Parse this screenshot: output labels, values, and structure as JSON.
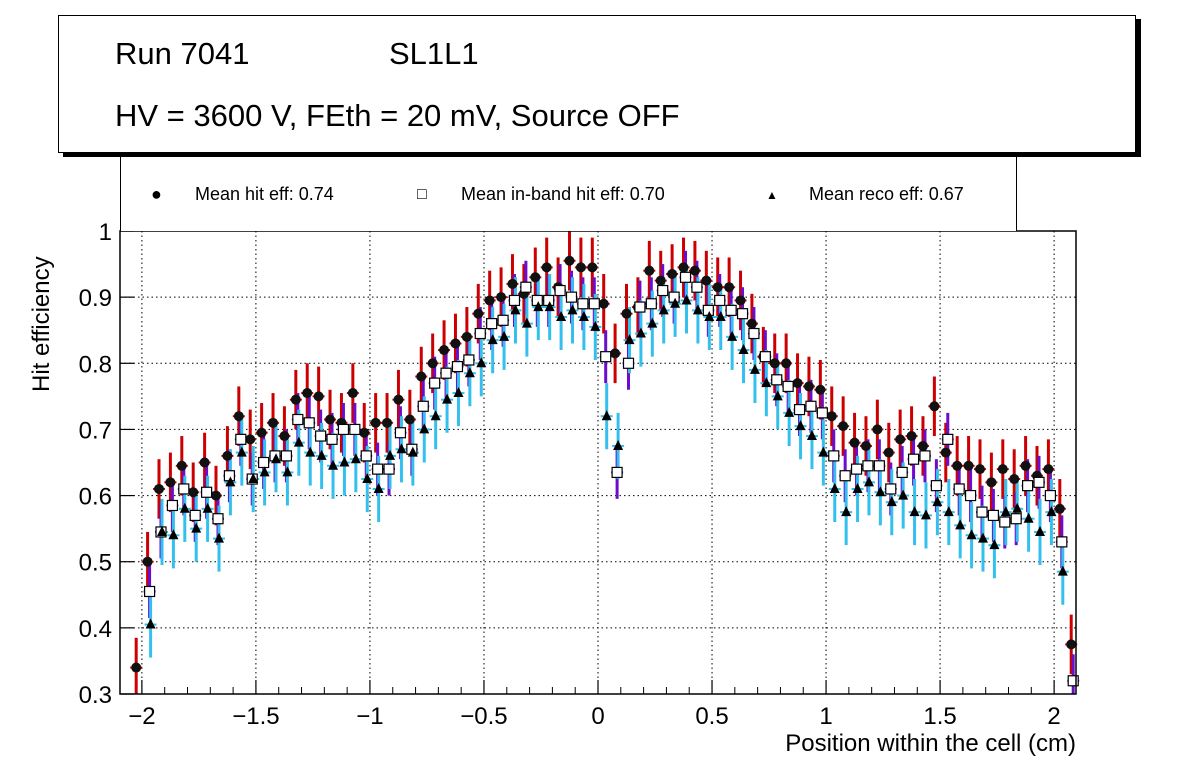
{
  "title_box": {
    "line1_run": "Run 7041",
    "line1_layer": "SL1L1",
    "line2": "HV = 3600 V, FEth = 20 mV, Source OFF"
  },
  "chart_data": {
    "type": "scatter",
    "title": "Run 7041 SL1L1 — HV = 3600 V, FEth = 20 mV, Source OFF",
    "xlabel": "Position within the cell (cm)",
    "ylabel": "Hit efficiency",
    "xlim": [
      -2.1,
      2.1
    ],
    "ylim": [
      0.3,
      1.0
    ],
    "grid": true,
    "legend_position": "top",
    "xticks": [
      -2,
      -1.5,
      -1,
      -0.5,
      0,
      0.5,
      1,
      1.5,
      2
    ],
    "xtick_labels": [
      "−2",
      "−1.5",
      "−1",
      "−0.5",
      "0",
      "0.5",
      "1",
      "1.5",
      "2"
    ],
    "yticks": [
      0.3,
      0.4,
      0.5,
      0.6,
      0.7,
      0.8,
      0.9,
      1
    ],
    "ytick_labels": [
      "0.3",
      "0.4",
      "0.5",
      "0.6",
      "0.7",
      "0.8",
      "0.9",
      "1"
    ],
    "legend": [
      {
        "name": "Mean hit  eff: 0.74",
        "marker": "circle"
      },
      {
        "name": "Mean in-band hit eff: 0.70",
        "marker": "open-square"
      },
      {
        "name": "Mean reco eff: 0.67",
        "marker": "triangle"
      }
    ],
    "x_start": -2.025,
    "x_step": 0.05,
    "series": [
      {
        "name": "Mean hit eff",
        "color": "#cc0000",
        "marker": "circle",
        "values": [
          0.34,
          0.5,
          0.61,
          0.62,
          0.645,
          0.605,
          0.65,
          0.6,
          0.66,
          0.72,
          0.685,
          0.695,
          0.71,
          0.69,
          0.745,
          0.755,
          0.75,
          0.715,
          0.71,
          0.755,
          0.695,
          0.71,
          0.71,
          0.745,
          0.715,
          0.78,
          0.8,
          0.82,
          0.83,
          0.84,
          0.875,
          0.895,
          0.9,
          0.92,
          0.905,
          0.93,
          0.945,
          0.915,
          0.955,
          0.945,
          0.945,
          0.89,
          0.815,
          0.875,
          0.885,
          0.94,
          0.925,
          0.935,
          0.945,
          0.94,
          0.925,
          0.915,
          0.915,
          0.895,
          0.86,
          0.81,
          0.8,
          0.8,
          0.77,
          0.765,
          0.76,
          0.72,
          0.705,
          0.68,
          0.675,
          0.7,
          0.665,
          0.685,
          0.69,
          0.675,
          0.735,
          0.665,
          0.645,
          0.645,
          0.64,
          0.62,
          0.64,
          0.625,
          0.645,
          0.63,
          0.64,
          0.58,
          0.375
        ]
      },
      {
        "name": "Mean in-band hit eff",
        "color": "#6a0dcc",
        "marker": "open-square",
        "values": [
          null,
          0.455,
          0.545,
          0.585,
          0.61,
          0.57,
          0.605,
          0.565,
          0.63,
          0.685,
          0.625,
          0.65,
          0.66,
          0.66,
          0.715,
          0.71,
          0.69,
          0.685,
          0.7,
          0.7,
          0.66,
          0.64,
          0.64,
          0.695,
          0.67,
          0.735,
          0.77,
          0.785,
          0.795,
          0.805,
          0.845,
          0.86,
          0.865,
          0.895,
          0.915,
          0.895,
          0.895,
          0.91,
          0.9,
          0.89,
          0.89,
          0.81,
          0.635,
          0.8,
          0.885,
          0.89,
          0.91,
          0.9,
          0.93,
          0.915,
          0.88,
          0.895,
          0.88,
          0.875,
          0.845,
          0.81,
          0.775,
          0.765,
          0.73,
          0.735,
          0.725,
          0.66,
          0.63,
          0.64,
          0.645,
          0.645,
          0.61,
          0.635,
          0.655,
          0.66,
          0.615,
          0.685,
          0.61,
          0.6,
          0.575,
          0.57,
          0.56,
          0.565,
          0.615,
          0.62,
          0.6,
          0.53,
          0.32
        ]
      },
      {
        "name": "Mean reco eff",
        "color": "#33c0ee",
        "marker": "triangle",
        "values": [
          null,
          0.405,
          0.545,
          0.54,
          0.58,
          0.55,
          0.58,
          0.535,
          0.62,
          0.665,
          0.625,
          0.635,
          0.655,
          0.635,
          0.68,
          0.665,
          0.66,
          0.645,
          0.65,
          0.655,
          0.625,
          0.61,
          0.66,
          0.67,
          0.665,
          0.7,
          0.72,
          0.745,
          0.755,
          0.785,
          0.8,
          0.835,
          0.84,
          0.88,
          0.86,
          0.885,
          0.885,
          0.87,
          0.88,
          0.87,
          0.855,
          0.72,
          0.675,
          0.835,
          0.845,
          0.86,
          0.88,
          0.89,
          0.895,
          0.88,
          0.87,
          0.87,
          0.84,
          0.82,
          0.79,
          0.77,
          0.75,
          0.725,
          0.705,
          0.69,
          0.665,
          0.61,
          0.575,
          0.61,
          0.62,
          0.605,
          0.59,
          0.6,
          0.575,
          0.57,
          0.59,
          0.575,
          0.555,
          0.54,
          0.535,
          0.525,
          0.575,
          0.58,
          0.565,
          0.545,
          0.575,
          0.485,
          null
        ]
      }
    ]
  }
}
